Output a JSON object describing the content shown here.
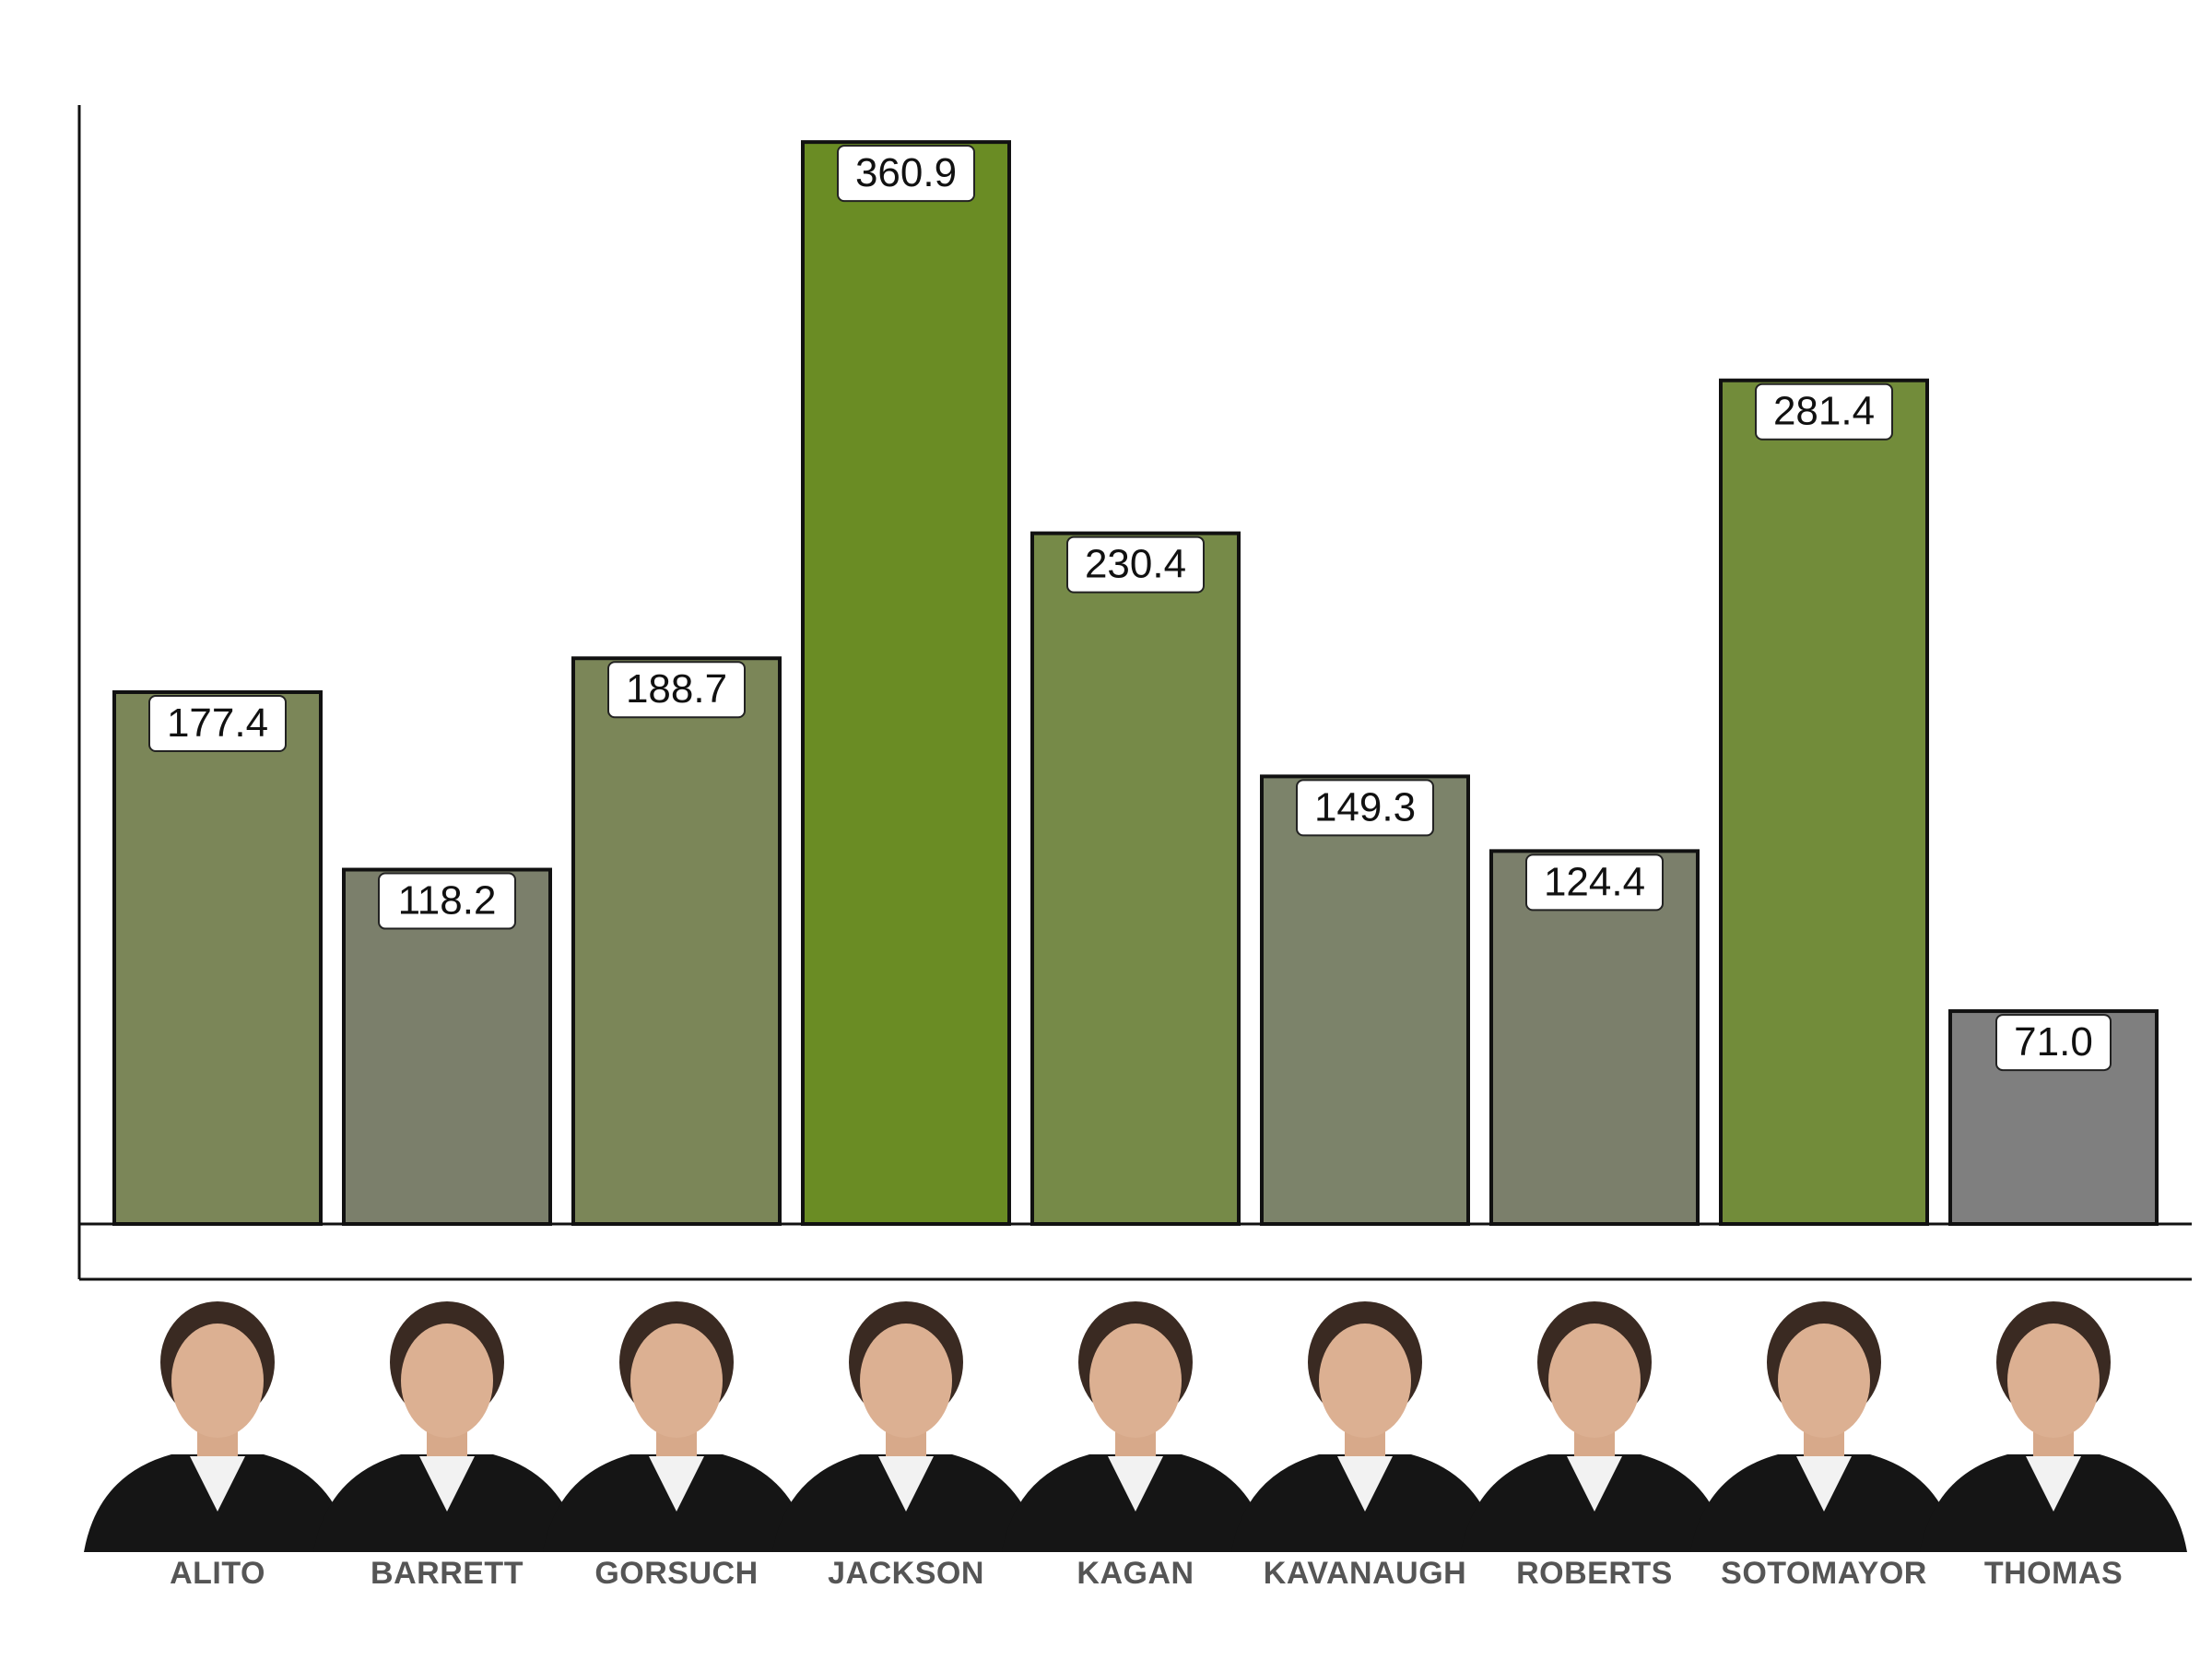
{
  "chart_data": {
    "type": "bar",
    "title": "",
    "xlabel": "",
    "ylabel": "",
    "ylim": [
      0,
      380
    ],
    "grid": false,
    "legend": "none",
    "categories": [
      "ALITO",
      "BARRETT",
      "GORSUCH",
      "JACKSON",
      "KAGAN",
      "KAVANAUGH",
      "ROBERTS",
      "SOTOMAYOR",
      "THOMAS"
    ],
    "series": [
      {
        "values": [
          177.4,
          118.2,
          188.7,
          360.9,
          230.4,
          149.3,
          124.4,
          281.4,
          71.0
        ],
        "labels": [
          "177.4",
          "118.2",
          "188.7",
          "360.9",
          "230.4",
          "149.3",
          "124.4",
          "281.4",
          "71.0"
        ],
        "colors": [
          "#7b8658",
          "#7b7f6b",
          "#7b8658",
          "#6a8c24",
          "#768a48",
          "#7c836a",
          "#7b7f6b",
          "#728c3a",
          "#7f7f7f"
        ]
      }
    ],
    "images": [
      "portrait-alito",
      "portrait-barrett",
      "portrait-gorsuch",
      "portrait-jackson",
      "portrait-kagan",
      "portrait-kavanaugh",
      "portrait-roberts",
      "portrait-sotomayor",
      "portrait-thomas"
    ]
  }
}
